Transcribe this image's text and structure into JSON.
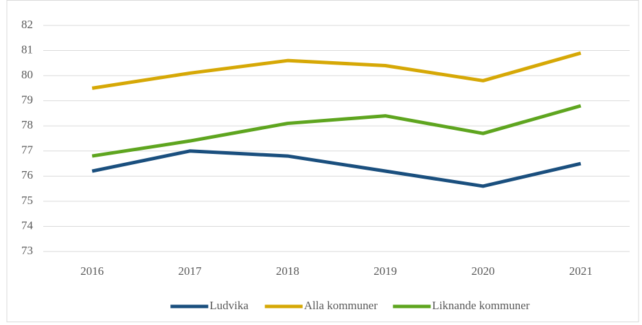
{
  "chart_data": {
    "type": "line",
    "categories": [
      "2016",
      "2017",
      "2018",
      "2019",
      "2020",
      "2021"
    ],
    "series": [
      {
        "name": "Ludvika",
        "color": "#1a4f7e",
        "values": [
          76.2,
          77.0,
          76.8,
          76.2,
          75.6,
          76.5
        ]
      },
      {
        "name": "Alla kommuner",
        "color": "#d6a806",
        "values": [
          79.5,
          80.1,
          80.6,
          80.4,
          79.8,
          80.9
        ]
      },
      {
        "name": "Liknande kommuner",
        "color": "#5ea51f",
        "values": [
          76.8,
          77.4,
          78.1,
          78.4,
          77.7,
          78.8
        ]
      }
    ],
    "ylim": [
      73,
      82
    ],
    "yticks": [
      73,
      74,
      75,
      76,
      77,
      78,
      79,
      80,
      81,
      82
    ],
    "grid": true,
    "legend": "bottom"
  }
}
